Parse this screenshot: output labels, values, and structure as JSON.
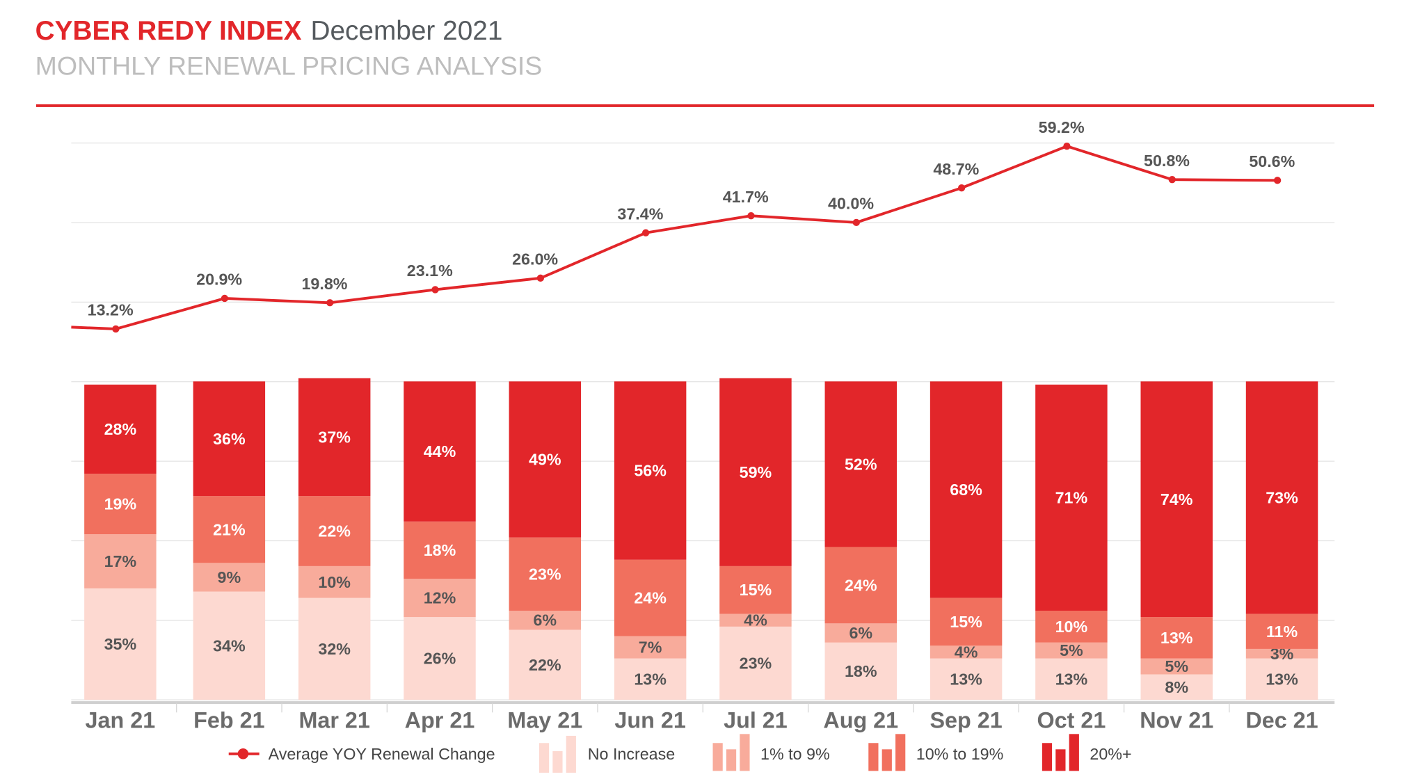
{
  "header": {
    "brand": "CYBER REDY INDEX",
    "date": "December 2021",
    "subtitle": "MONTHLY RENEWAL PRICING ANALYSIS"
  },
  "colors": {
    "accent": "#e2262a",
    "no_increase": "#fdd9d1",
    "one_to_nine": "#f8ab9b",
    "ten_to_nineteen": "#f1705e",
    "twenty_plus": "#e2262a",
    "line": "#e2262a"
  },
  "chart_data": {
    "type": "bar+line",
    "stacked": true,
    "categories": [
      "Jan 21",
      "Feb 21",
      "Mar 21",
      "Apr 21",
      "May 21",
      "Jun 21",
      "Jul 21",
      "Aug 21",
      "Sep 21",
      "Oct 21",
      "Nov 21",
      "Dec 21"
    ],
    "series": [
      {
        "name": "No Increase",
        "type": "bar",
        "values": [
          35,
          34,
          32,
          26,
          22,
          13,
          23,
          18,
          13,
          13,
          8,
          13
        ]
      },
      {
        "name": "1% to 9%",
        "type": "bar",
        "values": [
          17,
          9,
          10,
          12,
          6,
          7,
          4,
          6,
          4,
          5,
          5,
          3
        ]
      },
      {
        "name": "10% to 19%",
        "type": "bar",
        "values": [
          19,
          21,
          22,
          18,
          23,
          24,
          15,
          24,
          15,
          10,
          13,
          11
        ]
      },
      {
        "name": "20%+",
        "type": "bar",
        "values": [
          28,
          36,
          37,
          44,
          49,
          56,
          59,
          52,
          68,
          71,
          74,
          73
        ]
      },
      {
        "name": "Average YOY Renewal Change",
        "type": "line",
        "values": [
          13.2,
          20.9,
          19.8,
          23.1,
          26.0,
          37.4,
          41.7,
          40.0,
          48.7,
          59.2,
          50.8,
          50.6
        ]
      }
    ],
    "bar_ylim": [
      0,
      100
    ],
    "line_ylim": [
      0,
      60
    ],
    "grid": true,
    "legend_position": "bottom"
  }
}
